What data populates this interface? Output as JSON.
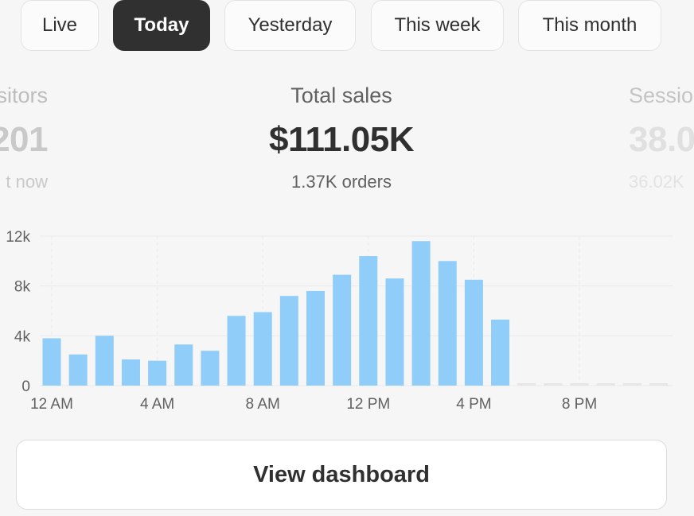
{
  "tabs": [
    "Live",
    "Today",
    "Yesterday",
    "This week",
    "This month"
  ],
  "active_tab": "Today",
  "metrics": {
    "visitors": {
      "label": "sitors",
      "value": "201",
      "sub": "t now"
    },
    "sales": {
      "label": "Total sales",
      "value": "$111.05K",
      "sub": "1.37K orders"
    },
    "sessions": {
      "label": "Sessio",
      "value": "38.0",
      "sub": "36.02K"
    }
  },
  "chart_data": {
    "type": "bar",
    "xlabel": "",
    "ylabel": "",
    "ylim": [
      0,
      12000
    ],
    "y_ticks": [
      {
        "value": 0,
        "label": "0"
      },
      {
        "value": 4000,
        "label": "4k"
      },
      {
        "value": 8000,
        "label": "8k"
      },
      {
        "value": 12000,
        "label": "12k"
      }
    ],
    "x_tick_labels": [
      {
        "hour": 0,
        "label": "12 AM"
      },
      {
        "hour": 4,
        "label": "4 AM"
      },
      {
        "hour": 8,
        "label": "8 AM"
      },
      {
        "hour": 12,
        "label": "12 PM"
      },
      {
        "hour": 16,
        "label": "4 PM"
      },
      {
        "hour": 20,
        "label": "8 PM"
      }
    ],
    "hours": [
      0,
      1,
      2,
      3,
      4,
      5,
      6,
      7,
      8,
      9,
      10,
      11,
      12,
      13,
      14,
      15,
      16,
      17,
      18,
      19,
      20,
      21,
      22,
      23
    ],
    "values": [
      3800,
      2500,
      4000,
      2100,
      2000,
      3300,
      2800,
      5600,
      5900,
      7200,
      7600,
      8900,
      10400,
      8600,
      11600,
      10000,
      8500,
      5300,
      0,
      0,
      0,
      0,
      0,
      0
    ],
    "reported": [
      true,
      true,
      true,
      true,
      true,
      true,
      true,
      true,
      true,
      true,
      true,
      true,
      true,
      true,
      true,
      true,
      true,
      true,
      false,
      false,
      false,
      false,
      false,
      false
    ],
    "grid": true,
    "colors": {
      "bar": "#90cdf8",
      "placeholder": "#e6e6e6",
      "grid": "#eaeaea"
    }
  },
  "cta": {
    "label": "View dashboard"
  }
}
